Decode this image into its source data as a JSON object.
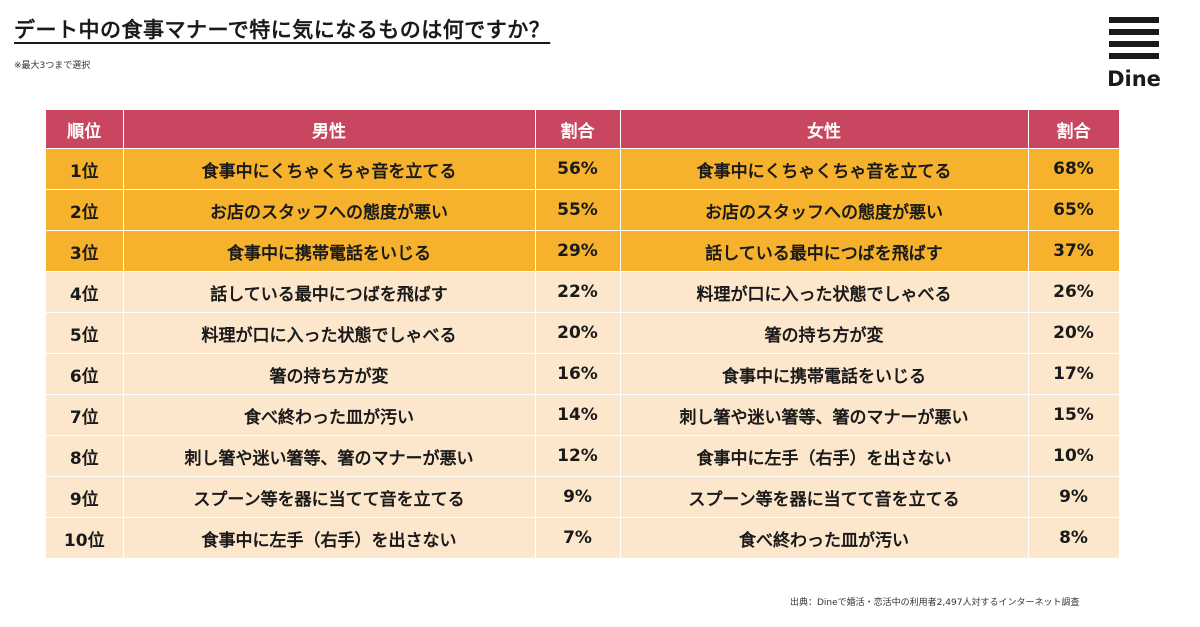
{
  "title": "デート中の食事マナーで特に気になるものは何ですか？",
  "note": "※最大3つまで選択",
  "logo_text": "Dine",
  "headers": {
    "rank": "順位",
    "male": "男性",
    "male_ratio": "割合",
    "female": "女性",
    "female_ratio": "割合"
  },
  "rows": [
    {
      "rank": "1位",
      "male": "食事中にくちゃくちゃ音を立てる",
      "male_ratio": "56%",
      "female": "食事中にくちゃくちゃ音を立てる",
      "female_ratio": "68%"
    },
    {
      "rank": "2位",
      "male": "お店のスタッフへの態度が悪い",
      "male_ratio": "55%",
      "female": "お店のスタッフへの態度が悪い",
      "female_ratio": "65%"
    },
    {
      "rank": "3位",
      "male": "食事中に携帯電話をいじる",
      "male_ratio": "29%",
      "female": "話している最中につばを飛ばす",
      "female_ratio": "37%"
    },
    {
      "rank": "4位",
      "male": "話している最中につばを飛ばす",
      "male_ratio": "22%",
      "female": "料理が口に入った状態でしゃべる",
      "female_ratio": "26%"
    },
    {
      "rank": "5位",
      "male": "料理が口に入った状態でしゃべる",
      "male_ratio": "20%",
      "female": "箸の持ち方が変",
      "female_ratio": "20%"
    },
    {
      "rank": "6位",
      "male": "箸の持ち方が変",
      "male_ratio": "16%",
      "female": "食事中に携帯電話をいじる",
      "female_ratio": "17%"
    },
    {
      "rank": "7位",
      "male": "食べ終わった皿が汚い",
      "male_ratio": "14%",
      "female": "刺し箸や迷い箸等、箸のマナーが悪い",
      "female_ratio": "15%"
    },
    {
      "rank": "8位",
      "male": "刺し箸や迷い箸等、箸のマナーが悪い",
      "male_ratio": "12%",
      "female": "食事中に左手（右手）を出さない",
      "female_ratio": "10%"
    },
    {
      "rank": "9位",
      "male": "スプーン等を器に当てて音を立てる",
      "male_ratio": "9%",
      "female": "スプーン等を器に当てて音を立てる",
      "female_ratio": "9%"
    },
    {
      "rank": "10位",
      "male": "食事中に左手（右手）を出さない",
      "male_ratio": "7%",
      "female": "食べ終わった皿が汚い",
      "female_ratio": "8%"
    }
  ],
  "source": "出典：Dineで婚活・恋活中の利用者2,497人対するインターネット調査",
  "colors": {
    "header": "#c8465f",
    "top3": "#f6b22c",
    "rest": "#fde7cc"
  }
}
